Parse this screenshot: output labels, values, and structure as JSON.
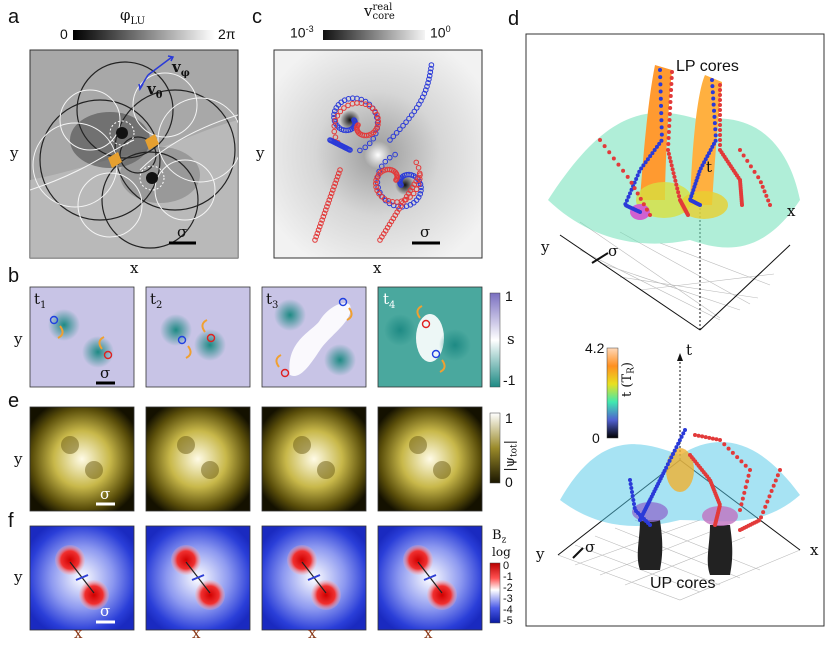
{
  "panels": {
    "a": {
      "letter": "a",
      "cbar_title": "φ",
      "cbar_title_sub": "LU",
      "cbar_min": "0",
      "cbar_max": "2π",
      "v_phi": "v",
      "v_phi_sub": "φ",
      "v_theta": "v",
      "v_theta_sub": "θ",
      "x": "x",
      "y": "y",
      "sigma": "σ"
    },
    "c": {
      "letter": "c",
      "cbar_title": "v",
      "cbar_title_sub": "core",
      "cbar_title_sup": "real",
      "cbar_min": "10",
      "cbar_min_exp": "-3",
      "cbar_max": "10",
      "cbar_max_exp": "0",
      "x": "x",
      "y": "y",
      "sigma": "σ"
    },
    "b": {
      "letter": "b",
      "y": "y",
      "sigma": "σ",
      "frames": [
        {
          "t": "t",
          "sub": "1"
        },
        {
          "t": "t",
          "sub": "2"
        },
        {
          "t": "t",
          "sub": "3"
        },
        {
          "t": "t",
          "sub": "4"
        }
      ],
      "cbar_max": "1",
      "cbar_min": "-1",
      "cbar_label": "s"
    },
    "e": {
      "letter": "e",
      "y": "y",
      "sigma": "σ",
      "cbar_max": "1",
      "cbar_min": "0",
      "cbar_label": "|ψ",
      "cbar_label_sub": "tot",
      "cbar_label_end": "|"
    },
    "f": {
      "letter": "f",
      "y": "y",
      "sigma": "σ",
      "x_labels": [
        "x",
        "x",
        "x",
        "x"
      ],
      "cbar_title": "B",
      "cbar_title_sub": "z",
      "cbar_scale": "log",
      "cbar_ticks": [
        "0",
        "-1",
        "-2",
        "-3",
        "-4",
        "-5"
      ]
    },
    "d": {
      "letter": "d",
      "lp_title": "LP cores",
      "up_title": "UP cores",
      "axis_t": "t",
      "axis_x": "x",
      "axis_y": "y",
      "sigma": "σ",
      "cbar_max": "4.2",
      "cbar_min": "0",
      "cbar_label": "t (T",
      "cbar_label_sub": "R",
      "cbar_label_end": ")"
    }
  },
  "colors": {
    "red_core": "#e23a3a",
    "blue_core": "#2a3ad8",
    "teal": "#3aa89a",
    "lavender": "#9a96cc",
    "olive": "#7a6a10",
    "bz_red": "#d81818",
    "bz_blue": "#2e3fd6"
  }
}
